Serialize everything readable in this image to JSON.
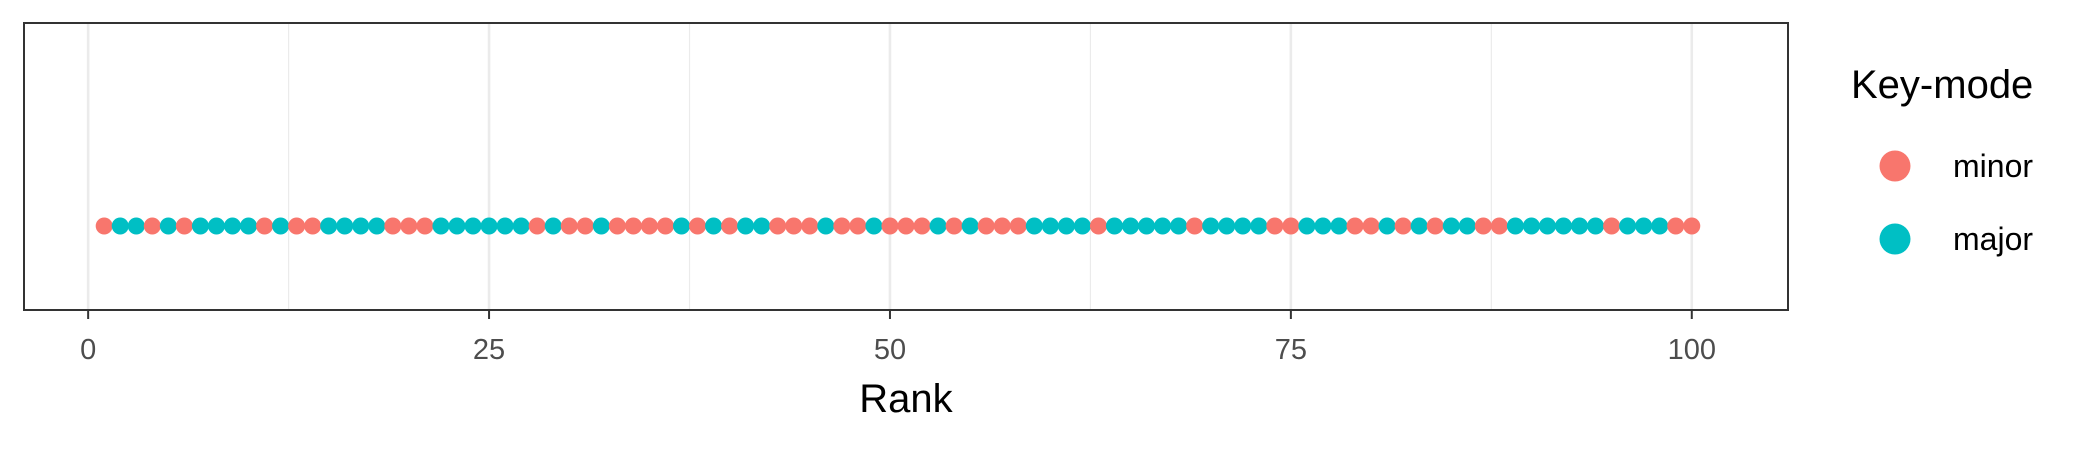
{
  "chart_data": {
    "type": "scatter",
    "title": "",
    "xlabel": "Rank",
    "ylabel": "",
    "xlim": [
      -4,
      106
    ],
    "x_ticks": [
      0,
      25,
      50,
      75,
      100
    ],
    "x_tick_labels": [
      "0",
      "25",
      "50",
      "75",
      "100"
    ],
    "grid": true,
    "legend": {
      "title": "Key-mode",
      "position": "right",
      "entries": [
        {
          "label": "minor",
          "color": "#F8766D"
        },
        {
          "label": "major",
          "color": "#00BFC4"
        }
      ]
    },
    "series": [
      {
        "name": "minor",
        "color": "#F8766D",
        "x": [
          1,
          4,
          6,
          11,
          13,
          14,
          19,
          20,
          21,
          28,
          30,
          31,
          33,
          34,
          35,
          36,
          38,
          40,
          43,
          44,
          45,
          47,
          48,
          50,
          51,
          52,
          54,
          56,
          57,
          58,
          63,
          69,
          74,
          75,
          79,
          80,
          82,
          84,
          87,
          88,
          95,
          99,
          100
        ]
      },
      {
        "name": "major",
        "color": "#00BFC4",
        "x": [
          2,
          3,
          5,
          7,
          8,
          9,
          10,
          12,
          15,
          16,
          17,
          18,
          22,
          23,
          24,
          25,
          26,
          27,
          29,
          32,
          37,
          39,
          41,
          42,
          46,
          49,
          53,
          55,
          59,
          60,
          61,
          62,
          64,
          65,
          66,
          67,
          68,
          70,
          71,
          72,
          73,
          76,
          77,
          78,
          81,
          83,
          85,
          86,
          89,
          90,
          91,
          92,
          93,
          94,
          96,
          97,
          98
        ]
      }
    ]
  }
}
